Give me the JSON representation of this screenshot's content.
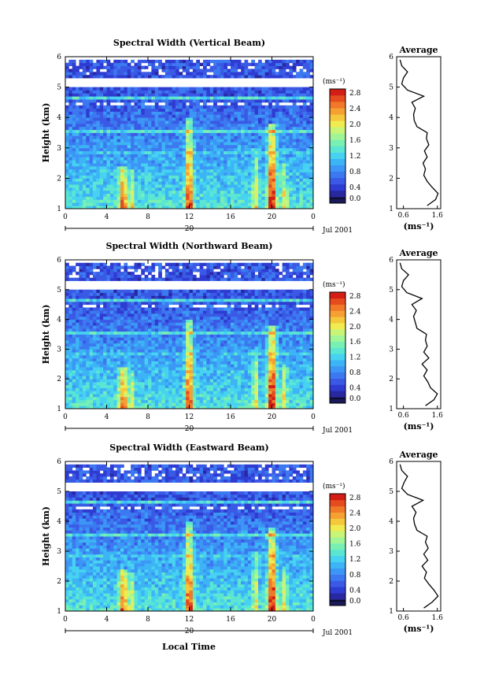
{
  "figure": {
    "xlabel": "Local Time",
    "date_center": "20",
    "date_right": "Jul 2001",
    "ylabel": "Height (km)",
    "colorbar_unit": "(ms⁻¹)",
    "average_title": "Average",
    "average_xlabel": "(ms⁻¹)"
  },
  "colorbar": {
    "ticks": [
      "0.0",
      "0.4",
      "0.8",
      "1.2",
      "1.6",
      "2.0",
      "2.4",
      "2.8"
    ],
    "colors": [
      "#1a1a5a",
      "#2828a0",
      "#2e3cd2",
      "#3a5ae6",
      "#3c78f0",
      "#3c96f5",
      "#3cb4f5",
      "#46d2f0",
      "#5ae6d2",
      "#78f0b4",
      "#a0f596",
      "#c8f578",
      "#f0eb50",
      "#f5c83c",
      "#f5a032",
      "#f07828",
      "#e64b1e",
      "#d21e14"
    ]
  },
  "chart_data": [
    {
      "type": "heatmap",
      "title": "Spectral Width (Vertical Beam)",
      "xlabel": "Local Time",
      "ylabel": "Height (km)",
      "x_ticks": [
        "0",
        "4",
        "8",
        "12",
        "16",
        "20",
        "0"
      ],
      "y_ticks": [
        "1",
        "2",
        "3",
        "4",
        "5",
        "6"
      ],
      "xlim": [
        0,
        24
      ],
      "ylim": [
        1,
        6
      ],
      "colorbar_range": [
        0.0,
        2.9
      ],
      "average_profile": {
        "title": "Average",
        "xlabel": "(ms⁻¹)",
        "x_ticks": [
          "0.6",
          "1.6"
        ],
        "xlim": [
          0.4,
          1.7
        ],
        "y_ticks": [
          "1",
          "2",
          "3",
          "4",
          "5",
          "6"
        ],
        "height": [
          1.1,
          1.3,
          1.5,
          1.7,
          1.9,
          2.1,
          2.3,
          2.5,
          2.7,
          2.9,
          3.1,
          3.3,
          3.5,
          3.7,
          3.9,
          4.1,
          4.3,
          4.5,
          4.7,
          4.9,
          5.1,
          5.3,
          5.5,
          5.7,
          5.9
        ],
        "width": [
          1.3,
          1.55,
          1.62,
          1.45,
          1.3,
          1.2,
          1.25,
          1.18,
          1.3,
          1.22,
          1.35,
          1.28,
          1.3,
          1.0,
          0.92,
          0.9,
          0.95,
          0.85,
          1.2,
          0.72,
          0.55,
          0.6,
          0.72,
          0.55,
          0.5
        ]
      }
    },
    {
      "type": "heatmap",
      "title": "Spectral Width (Northward Beam)",
      "xlabel": "Local Time",
      "ylabel": "Height (km)",
      "x_ticks": [
        "0",
        "4",
        "8",
        "12",
        "16",
        "20",
        "0"
      ],
      "y_ticks": [
        "1",
        "2",
        "3",
        "4",
        "5",
        "6"
      ],
      "xlim": [
        0,
        24
      ],
      "ylim": [
        1,
        6
      ],
      "colorbar_range": [
        0.0,
        2.9
      ],
      "average_profile": {
        "title": "Average",
        "xlabel": "(ms⁻¹)",
        "x_ticks": [
          "0.6",
          "1.6"
        ],
        "xlim": [
          0.4,
          1.7
        ],
        "y_ticks": [
          "1",
          "2",
          "3",
          "4",
          "5",
          "6"
        ],
        "height": [
          1.1,
          1.3,
          1.5,
          1.7,
          1.9,
          2.1,
          2.3,
          2.5,
          2.7,
          2.9,
          3.1,
          3.3,
          3.5,
          3.7,
          3.9,
          4.1,
          4.3,
          4.5,
          4.7,
          4.9,
          5.1,
          5.3,
          5.5,
          5.7,
          5.9
        ],
        "width": [
          1.25,
          1.5,
          1.6,
          1.4,
          1.32,
          1.2,
          1.3,
          1.15,
          1.35,
          1.2,
          1.3,
          1.25,
          1.28,
          1.0,
          0.95,
          0.9,
          0.98,
          0.85,
          1.15,
          0.7,
          0.55,
          0.6,
          0.75,
          0.55,
          0.5
        ]
      }
    },
    {
      "type": "heatmap",
      "title": "Spectral Width (Eastward Beam)",
      "xlabel": "Local Time",
      "ylabel": "Height (km)",
      "x_ticks": [
        "0",
        "4",
        "8",
        "12",
        "16",
        "20",
        "0"
      ],
      "y_ticks": [
        "1",
        "2",
        "3",
        "4",
        "5",
        "6"
      ],
      "xlim": [
        0,
        24
      ],
      "ylim": [
        1,
        6
      ],
      "colorbar_range": [
        0.0,
        2.9
      ],
      "average_profile": {
        "title": "Average",
        "xlabel": "(ms⁻¹)",
        "x_ticks": [
          "0.6",
          "1.6"
        ],
        "xlim": [
          0.4,
          1.7
        ],
        "y_ticks": [
          "1",
          "2",
          "3",
          "4",
          "5",
          "6"
        ],
        "height": [
          1.1,
          1.3,
          1.5,
          1.7,
          1.9,
          2.1,
          2.3,
          2.5,
          2.7,
          2.9,
          3.1,
          3.3,
          3.5,
          3.7,
          3.9,
          4.1,
          4.3,
          4.5,
          4.7,
          4.9,
          5.1,
          5.3,
          5.5,
          5.7,
          5.9
        ],
        "width": [
          1.2,
          1.45,
          1.62,
          1.5,
          1.35,
          1.22,
          1.28,
          1.15,
          1.32,
          1.2,
          1.33,
          1.25,
          1.3,
          1.0,
          0.93,
          0.9,
          0.97,
          0.85,
          1.18,
          0.72,
          0.55,
          0.62,
          0.72,
          0.55,
          0.5
        ]
      }
    }
  ]
}
